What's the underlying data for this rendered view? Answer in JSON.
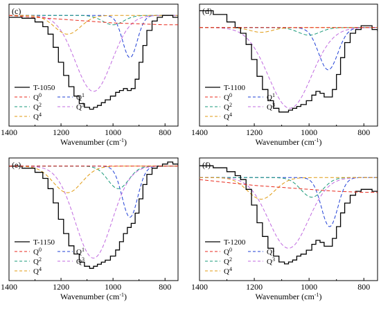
{
  "figure": {
    "xlabel": "Wavenumber (cm",
    "xlabel_sup": "-1",
    "xlabel_end": ")",
    "legend_labels": {
      "q0": "Q",
      "q0_sup": "0",
      "q1": "Q",
      "q1_sup": "1",
      "q2": "Q",
      "q2_sup": "2",
      "q3": "Q",
      "q3_sup": "3",
      "q4": "Q",
      "q4_sup": "4"
    },
    "colors": {
      "total": "#000000",
      "q0": "#e8291c",
      "q1": "#1f3fd6",
      "q2": "#1a9a7a",
      "q3": "#c069e0",
      "q4": "#e09a10"
    }
  },
  "chart_data": [
    {
      "type": "line",
      "panel_label": "(c)",
      "sample": "T-1050",
      "xlim": [
        1400,
        750
      ],
      "xticks": [
        1400,
        1200,
        1000,
        800
      ],
      "xlabel": "Wavenumber (cm-1)",
      "baseline": 0.0,
      "series": [
        {
          "name": "T-1050",
          "key": "total",
          "style": "solid",
          "x": [
            1400,
            1350,
            1300,
            1270,
            1250,
            1230,
            1210,
            1190,
            1170,
            1150,
            1130,
            1110,
            1090,
            1075,
            1060,
            1045,
            1030,
            1010,
            990,
            975,
            960,
            945,
            930,
            915,
            900,
            885,
            870,
            850,
            830,
            810,
            790,
            770,
            750
          ],
          "y": [
            -0.02,
            -0.03,
            -0.07,
            -0.12,
            -0.2,
            -0.34,
            -0.5,
            -0.64,
            -0.76,
            -0.86,
            -0.94,
            -0.98,
            -1.0,
            -0.98,
            -0.96,
            -0.93,
            -0.9,
            -0.86,
            -0.82,
            -0.8,
            -0.78,
            -0.8,
            -0.78,
            -0.68,
            -0.5,
            -0.32,
            -0.16,
            -0.06,
            -0.02,
            0.0,
            0.0,
            -0.02,
            0.0
          ]
        },
        {
          "name": "Q0",
          "key": "q0",
          "style": "dashed",
          "x": [
            1400,
            1300,
            1200,
            1100,
            1000,
            900,
            800,
            750
          ],
          "y": [
            0.0,
            -0.02,
            -0.04,
            -0.06,
            -0.08,
            -0.09,
            -0.1,
            -0.1
          ]
        }
      ],
      "gaussians": [
        {
          "name": "Q1",
          "key": "q1",
          "center": 935,
          "amp": -0.45,
          "sigma": 28
        },
        {
          "name": "Q2",
          "key": "q2",
          "center": 1000,
          "amp": -0.1,
          "sigma": 40
        },
        {
          "name": "Q3",
          "key": "q3",
          "center": 1075,
          "amp": -0.81,
          "sigma": 70
        },
        {
          "name": "Q4",
          "key": "q4",
          "center": 1175,
          "amp": -0.2,
          "sigma": 50
        }
      ]
    },
    {
      "type": "line",
      "panel_label": "(d)",
      "sample": "T-1100",
      "xlim": [
        1400,
        750
      ],
      "xticks": [
        1400,
        1200,
        1000,
        800
      ],
      "xlabel": "Wavenumber (cm-1)",
      "baseline": 0.0,
      "series": [
        {
          "name": "T-1100",
          "key": "total",
          "style": "solid",
          "x": [
            1400,
            1350,
            1300,
            1270,
            1250,
            1230,
            1210,
            1190,
            1170,
            1150,
            1130,
            1110,
            1090,
            1075,
            1060,
            1045,
            1030,
            1010,
            990,
            975,
            960,
            945,
            930,
            915,
            900,
            885,
            870,
            850,
            830,
            810,
            790,
            770,
            750
          ],
          "y": [
            0.18,
            0.14,
            0.06,
            0.0,
            -0.06,
            -0.18,
            -0.34,
            -0.52,
            -0.66,
            -0.78,
            -0.86,
            -0.9,
            -0.9,
            -0.88,
            -0.86,
            -0.84,
            -0.82,
            -0.78,
            -0.72,
            -0.68,
            -0.7,
            -0.74,
            -0.74,
            -0.66,
            -0.5,
            -0.32,
            -0.16,
            -0.06,
            -0.02,
            0.02,
            0.02,
            -0.02,
            -0.04
          ]
        },
        {
          "name": "Q0",
          "key": "q0",
          "style": "dashed",
          "x": [
            1400,
            1300,
            1200,
            1100,
            1000,
            900,
            800,
            750
          ],
          "y": [
            0.0,
            0.0,
            0.0,
            0.0,
            0.0,
            0.0,
            0.0,
            0.0
          ]
        }
      ],
      "gaussians": [
        {
          "name": "Q1",
          "key": "q1",
          "center": 930,
          "amp": -0.45,
          "sigma": 35
        },
        {
          "name": "Q2",
          "key": "q2",
          "center": 1000,
          "amp": -0.08,
          "sigma": 40
        },
        {
          "name": "Q3",
          "key": "q3",
          "center": 1070,
          "amp": -0.86,
          "sigma": 78
        },
        {
          "name": "Q4",
          "key": "q4",
          "center": 1175,
          "amp": -0.05,
          "sigma": 40
        }
      ]
    },
    {
      "type": "line",
      "panel_label": "(e)",
      "sample": "T-1150",
      "xlim": [
        1400,
        750
      ],
      "xticks": [
        1400,
        1200,
        1000,
        800
      ],
      "xlabel": "Wavenumber (cm-1)",
      "baseline": 0.0,
      "series": [
        {
          "name": "T-1150",
          "key": "total",
          "style": "solid",
          "x": [
            1400,
            1350,
            1300,
            1270,
            1250,
            1230,
            1210,
            1190,
            1170,
            1150,
            1130,
            1110,
            1090,
            1075,
            1060,
            1045,
            1030,
            1010,
            990,
            975,
            960,
            945,
            930,
            915,
            900,
            885,
            870,
            850,
            830,
            810,
            790,
            780,
            770,
            750
          ],
          "y": [
            0.0,
            -0.02,
            -0.06,
            -0.12,
            -0.22,
            -0.36,
            -0.52,
            -0.66,
            -0.78,
            -0.86,
            -0.94,
            -0.98,
            -1.0,
            -0.98,
            -0.96,
            -0.94,
            -0.92,
            -0.88,
            -0.82,
            -0.74,
            -0.66,
            -0.6,
            -0.56,
            -0.46,
            -0.32,
            -0.18,
            -0.08,
            -0.02,
            0.0,
            0.02,
            0.04,
            0.04,
            0.02,
            0.0
          ]
        },
        {
          "name": "Q0",
          "key": "q0",
          "style": "dashed",
          "x": [
            1400,
            1300,
            1200,
            1100,
            1000,
            900,
            800,
            750
          ],
          "y": [
            0.0,
            0.0,
            0.0,
            0.0,
            0.0,
            0.0,
            0.0,
            0.0
          ]
        }
      ],
      "gaussians": [
        {
          "name": "Q1",
          "key": "q1",
          "center": 935,
          "amp": -0.5,
          "sigma": 30
        },
        {
          "name": "Q2",
          "key": "q2",
          "center": 980,
          "amp": -0.22,
          "sigma": 40
        },
        {
          "name": "Q3",
          "key": "q3",
          "center": 1075,
          "amp": -0.9,
          "sigma": 70
        },
        {
          "name": "Q4",
          "key": "q4",
          "center": 1175,
          "amp": -0.26,
          "sigma": 55
        }
      ]
    },
    {
      "type": "line",
      "panel_label": "(f)",
      "sample": "T-1200",
      "xlim": [
        1400,
        750
      ],
      "xticks": [
        1400,
        1200,
        1000,
        800
      ],
      "xlabel": "Wavenumber (cm-1)",
      "baseline": 0.0,
      "series": [
        {
          "name": "T-1200",
          "key": "total",
          "style": "solid",
          "x": [
            1400,
            1350,
            1300,
            1270,
            1250,
            1230,
            1210,
            1190,
            1170,
            1150,
            1130,
            1110,
            1090,
            1075,
            1060,
            1045,
            1030,
            1010,
            990,
            975,
            960,
            945,
            930,
            915,
            900,
            885,
            870,
            850,
            830,
            810,
            790,
            770,
            750
          ],
          "y": [
            0.12,
            0.1,
            0.06,
            0.02,
            -0.02,
            -0.12,
            -0.28,
            -0.46,
            -0.6,
            -0.72,
            -0.8,
            -0.86,
            -0.88,
            -0.86,
            -0.84,
            -0.8,
            -0.78,
            -0.74,
            -0.68,
            -0.64,
            -0.66,
            -0.7,
            -0.7,
            -0.62,
            -0.5,
            -0.36,
            -0.26,
            -0.18,
            -0.14,
            -0.12,
            -0.12,
            -0.14,
            -0.16
          ]
        },
        {
          "name": "Q0",
          "key": "q0",
          "style": "dashed",
          "x": [
            1400,
            1300,
            1200,
            1100,
            1000,
            900,
            800,
            750
          ],
          "y": [
            -0.02,
            -0.05,
            -0.08,
            -0.1,
            -0.12,
            -0.14,
            -0.15,
            -0.15
          ]
        }
      ],
      "gaussians": [
        {
          "name": "Q1",
          "key": "q1",
          "center": 925,
          "amp": -0.5,
          "sigma": 30
        },
        {
          "name": "Q2",
          "key": "q2",
          "center": 990,
          "amp": -0.2,
          "sigma": 40
        },
        {
          "name": "Q3",
          "key": "q3",
          "center": 1075,
          "amp": -0.72,
          "sigma": 72
        },
        {
          "name": "Q4",
          "key": "q4",
          "center": 1175,
          "amp": -0.22,
          "sigma": 50
        }
      ]
    }
  ]
}
